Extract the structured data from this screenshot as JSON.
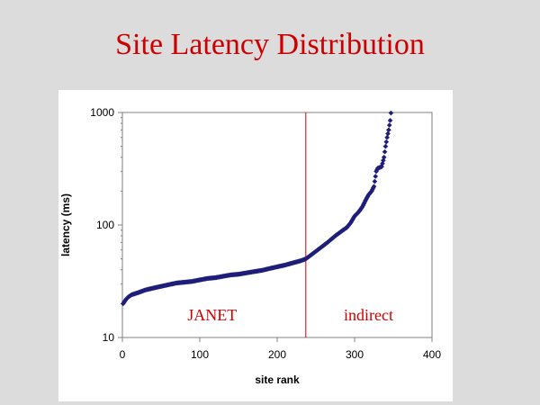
{
  "slide": {
    "title": "Site Latency Distribution"
  },
  "colors": {
    "background": "#dcdcdc",
    "panel": "#ffffff",
    "title": "#cc0000",
    "marker": "#1f1f7a",
    "divider": "#cc0000",
    "region_label": "#cc0000",
    "axis": "#808080"
  },
  "chart_data": {
    "type": "scatter",
    "title": "",
    "xlabel": "site rank",
    "ylabel": "latency (ms)",
    "xlim": [
      0,
      400
    ],
    "ylim": [
      10,
      1000
    ],
    "yscale": "log",
    "grid": false,
    "legend": "none",
    "x_ticks": [
      "0",
      "100",
      "200",
      "300",
      "400"
    ],
    "y_ticks": [
      "10",
      "100",
      "1000"
    ],
    "divider_x": 237,
    "annotations": [
      {
        "text": "JANET",
        "x": 116,
        "y": 15.5
      },
      {
        "text": "indirect",
        "x": 318,
        "y": 15.5
      }
    ],
    "series": [
      {
        "x": [
          1,
          3,
          5,
          8,
          12,
          20,
          30,
          40,
          50,
          60,
          70,
          80,
          90,
          100,
          110,
          120,
          130,
          140,
          150,
          160,
          170,
          180,
          190,
          200,
          210,
          220,
          230,
          237,
          245,
          255,
          265,
          275,
          285,
          290,
          295,
          300,
          305,
          310,
          315,
          318,
          322,
          325,
          328,
          330,
          335,
          338,
          340,
          342,
          344,
          346,
          347
        ],
        "y": [
          20,
          21,
          22,
          23,
          24,
          25,
          26.5,
          27.5,
          28.5,
          29.5,
          30.5,
          31,
          31.5,
          32.5,
          33.5,
          34,
          35,
          36,
          36.5,
          37.5,
          38.5,
          39.5,
          41,
          42.5,
          44,
          46,
          48,
          50,
          55,
          62,
          70,
          80,
          90,
          95,
          105,
          120,
          130,
          145,
          170,
          185,
          200,
          220,
          300,
          320,
          330,
          400,
          500,
          600,
          700,
          850,
          990
        ]
      }
    ]
  }
}
